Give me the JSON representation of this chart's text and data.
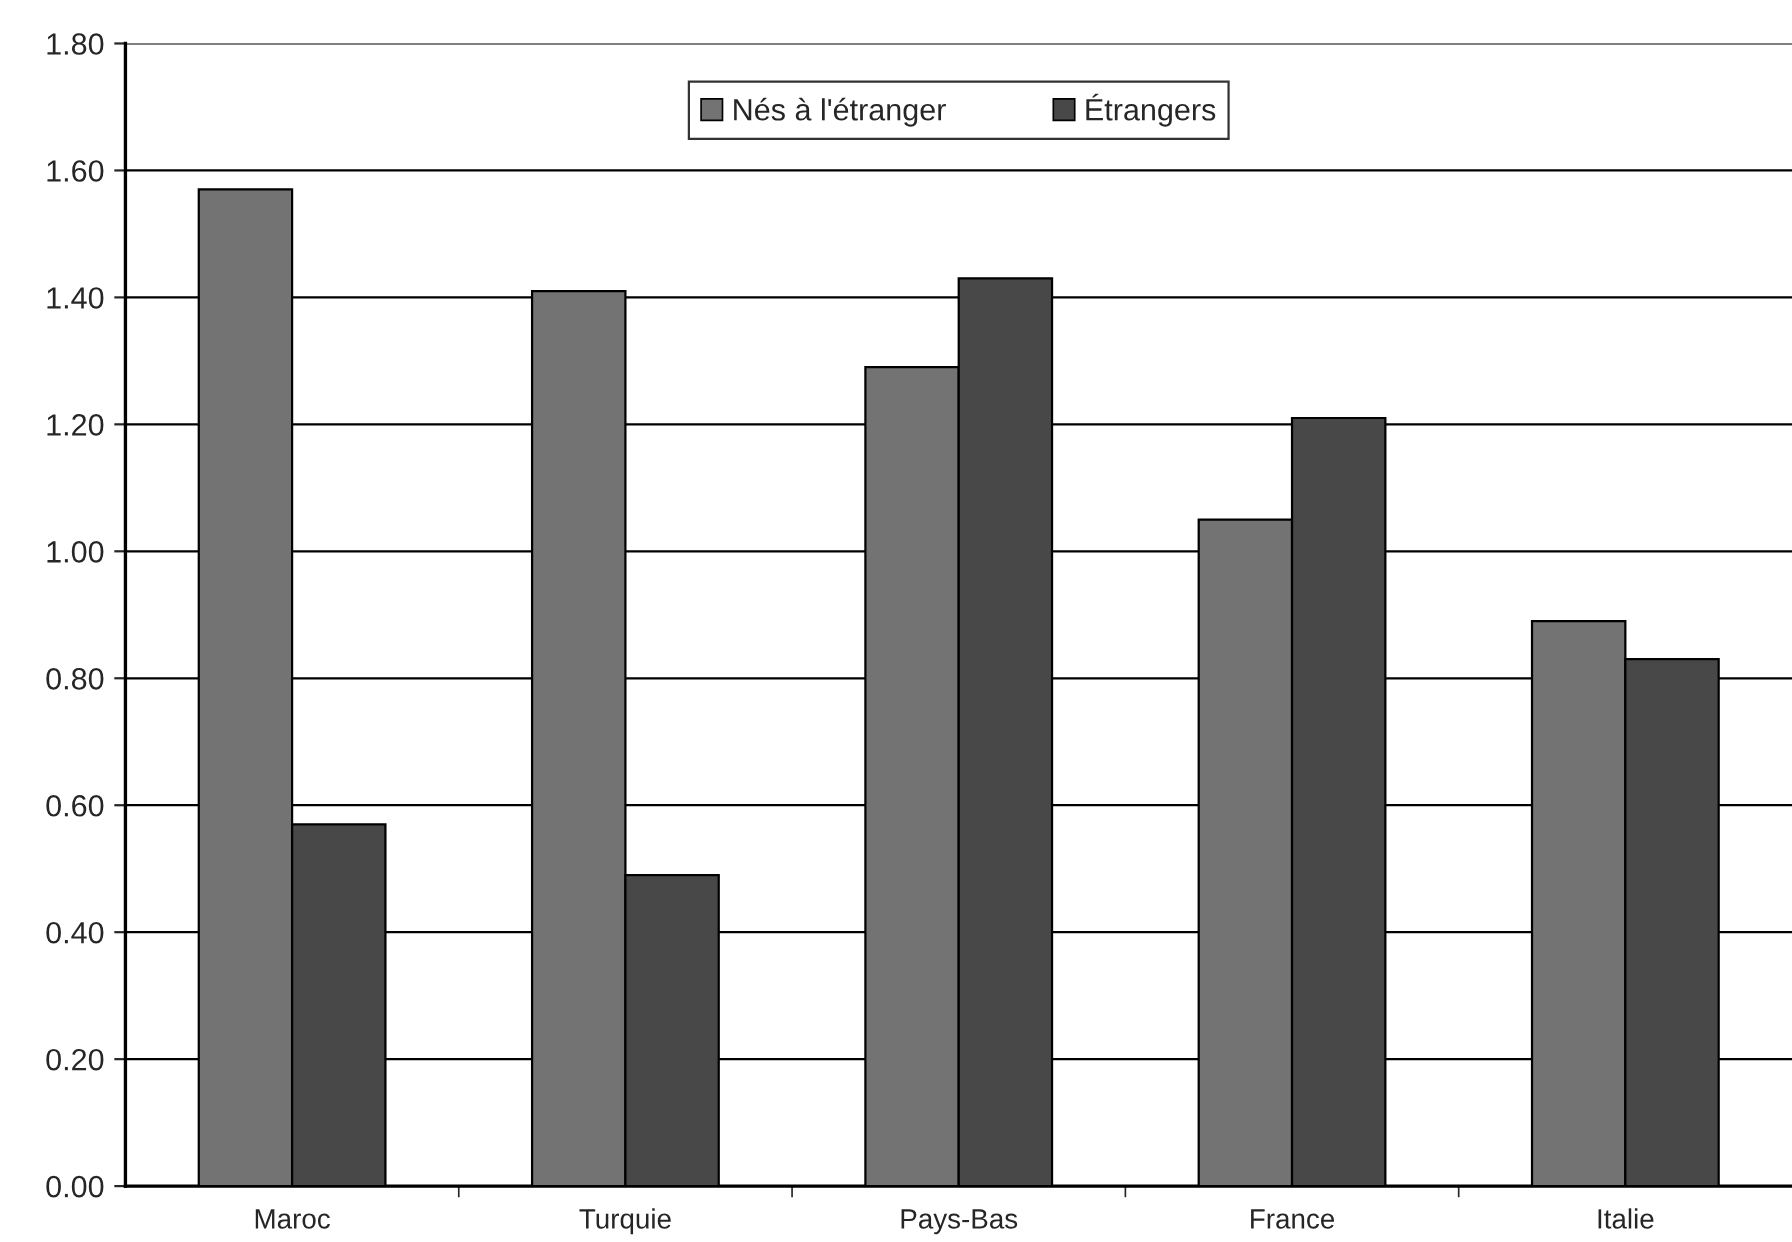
{
  "chart_data": {
    "type": "bar",
    "categories": [
      "Maroc",
      "Turquie",
      "Pays-Bas",
      "France",
      "Italie"
    ],
    "series": [
      {
        "name": "Nés à l'étranger",
        "color": "#737373",
        "values": [
          1.57,
          1.41,
          1.29,
          1.05,
          0.89
        ]
      },
      {
        "name": "Étrangers",
        "color": "#484848",
        "values": [
          0.57,
          0.49,
          1.43,
          1.21,
          0.83
        ]
      }
    ],
    "ylim": [
      0,
      1.8
    ],
    "yticks": [
      {
        "value": 0,
        "label": "0.00"
      },
      {
        "value": 0.2,
        "label": "0.20"
      },
      {
        "value": 0.4,
        "label": "0.40"
      },
      {
        "value": 0.6,
        "label": "0.60"
      },
      {
        "value": 0.8,
        "label": "0.80"
      },
      {
        "value": 1.0,
        "label": "1.00"
      },
      {
        "value": 1.2,
        "label": "1.20"
      },
      {
        "value": 1.4,
        "label": "1.40"
      },
      {
        "value": 1.6,
        "label": "1.60"
      },
      {
        "value": 1.8,
        "label": "1.80"
      }
    ],
    "grid": "y",
    "legend": "top"
  }
}
